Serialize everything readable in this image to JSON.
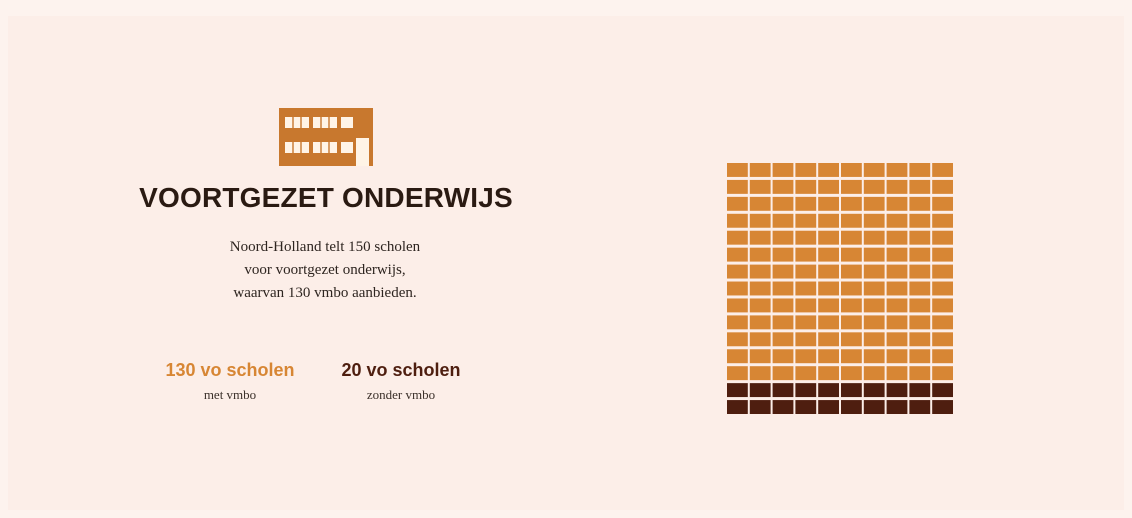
{
  "colors": {
    "accent": "#d78634",
    "dark": "#4e1e0f",
    "title": "#2a1a12",
    "background": "#fceee8"
  },
  "icon": "school-building-icon",
  "title": "VOORTGEZET ONDERWIJS",
  "description": [
    "Noord-Holland telt 150 scholen",
    "voor voortgezet onderwijs,",
    "waarvan 130 vmbo aanbieden."
  ],
  "stats": [
    {
      "value": "130 vo scholen",
      "label": "met vmbo",
      "color": "#d78634"
    },
    {
      "value": "20 vo scholen",
      "label": "zonder vmbo",
      "color": "#4e1e0f"
    }
  ],
  "chart_data": {
    "type": "waffle",
    "title": "",
    "series": [
      {
        "name": "met vmbo",
        "value": 130,
        "color": "#d78634"
      },
      {
        "name": "zonder vmbo",
        "value": 20,
        "color": "#4e1e0f"
      }
    ],
    "total": 150,
    "columns": 10,
    "rows": 15
  }
}
